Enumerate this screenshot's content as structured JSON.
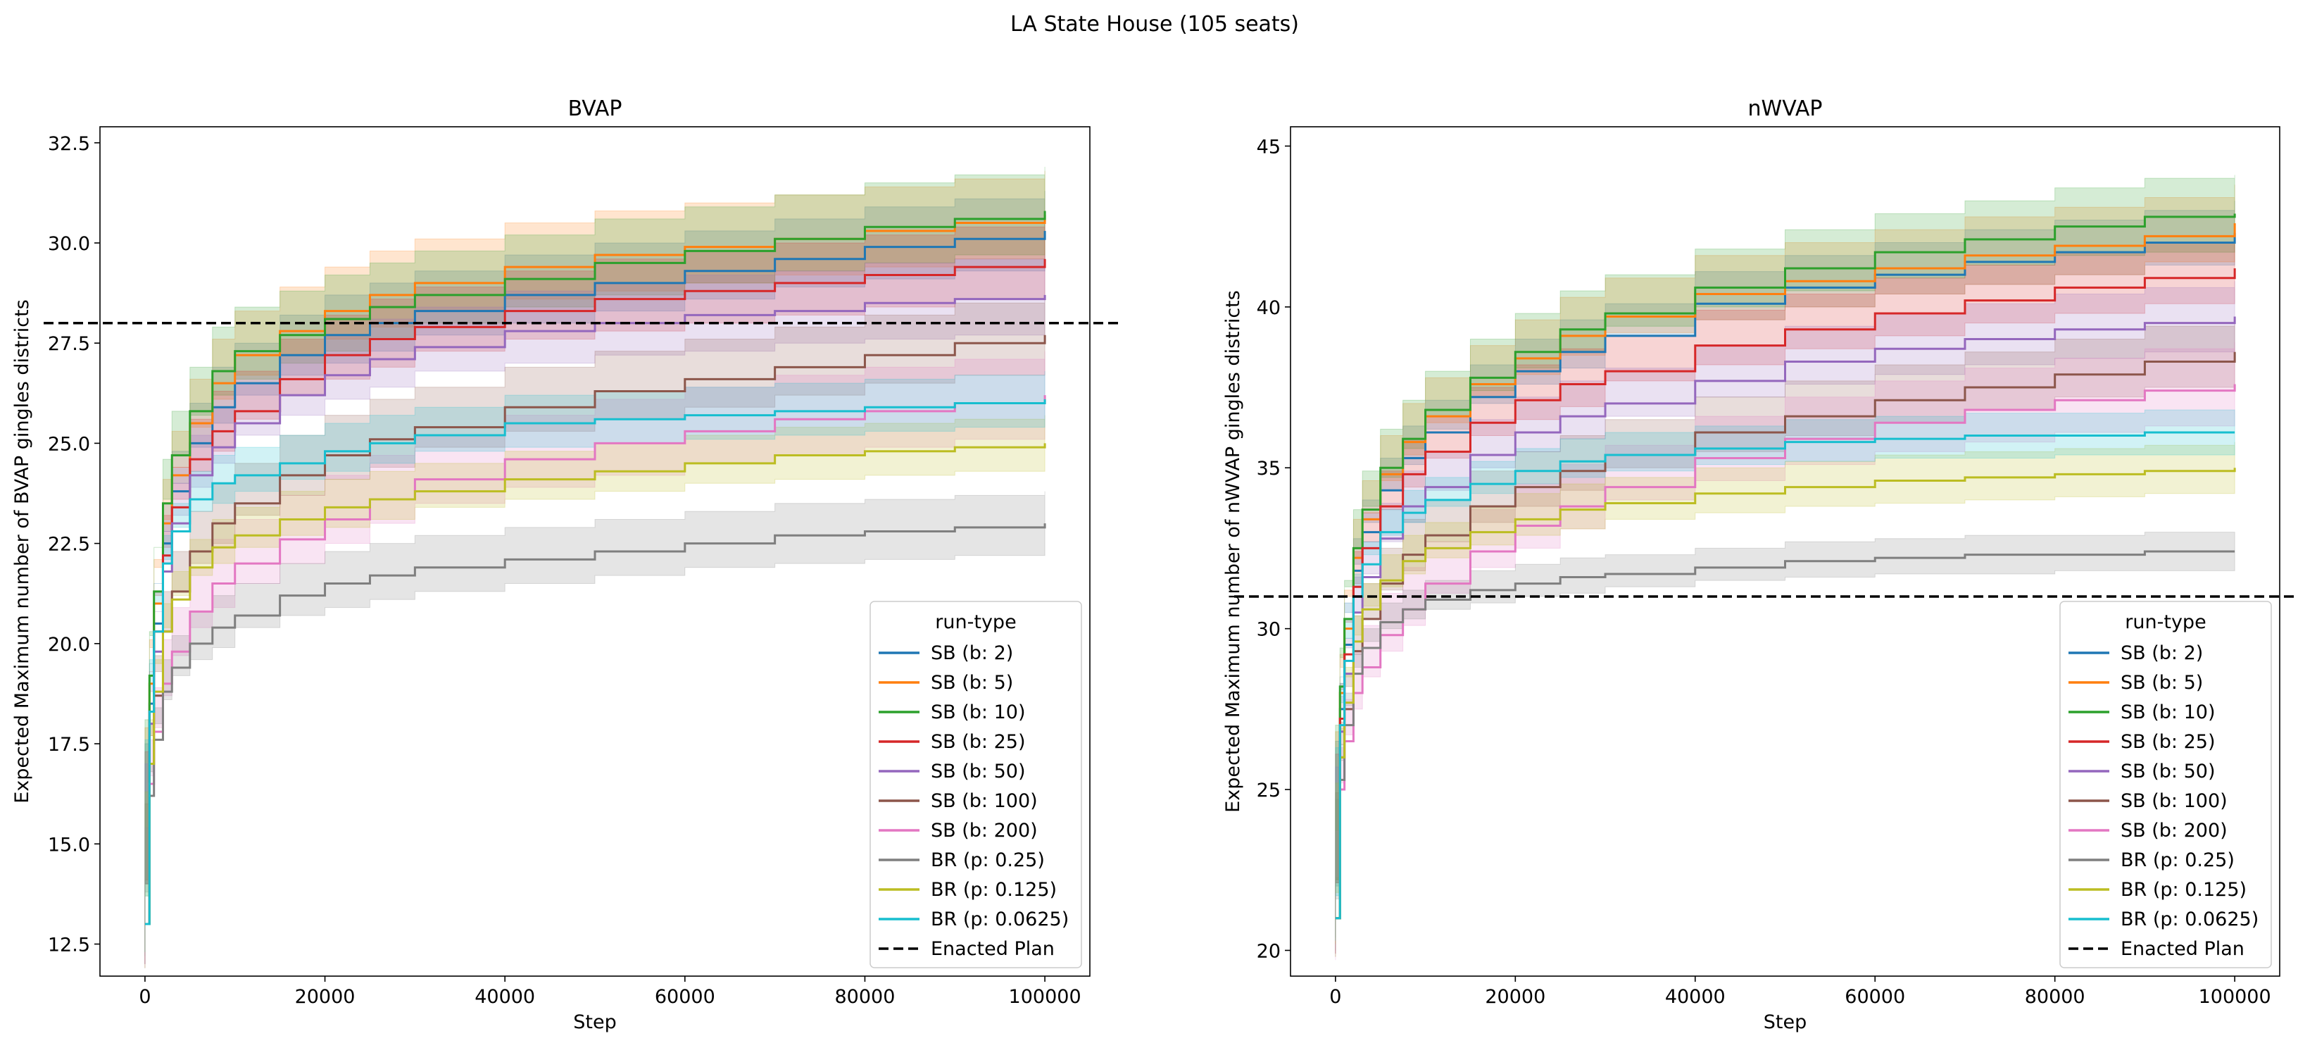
{
  "figure": {
    "suptitle": "LA State House (105 seats)"
  },
  "chart_data": [
    {
      "type": "line",
      "title": "BVAP",
      "xlabel": "Step",
      "ylabel": "Expected Maximum number of BVAP gingles districts",
      "xlim": [
        -5000,
        105000
      ],
      "ylim": [
        11.7,
        32.9
      ],
      "xticks": [
        0,
        20000,
        40000,
        60000,
        80000,
        100000
      ],
      "yticks": [
        12.5,
        15.0,
        17.5,
        20.0,
        22.5,
        25.0,
        27.5,
        30.0,
        32.5
      ],
      "grid": false,
      "legend": {
        "title": "run-type",
        "placement": "lower-right"
      },
      "enacted_plan": {
        "name": "Enacted Plan",
        "value": 28.0,
        "color": "#000000"
      },
      "x": [
        0,
        500,
        1000,
        2000,
        3000,
        5000,
        7500,
        10000,
        15000,
        20000,
        25000,
        30000,
        40000,
        50000,
        60000,
        70000,
        80000,
        90000,
        100000
      ],
      "series": [
        {
          "name": "SB (b: 2)",
          "color": "#1f77b4",
          "band": 1.0,
          "values": [
            13.0,
            18.5,
            20.5,
            22.5,
            23.8,
            25.0,
            25.9,
            26.5,
            27.2,
            27.7,
            28.0,
            28.3,
            28.7,
            29.0,
            29.3,
            29.6,
            29.9,
            30.1,
            30.3
          ]
        },
        {
          "name": "SB (b: 5)",
          "color": "#ff7f0e",
          "band": 1.1,
          "values": [
            13.0,
            19.0,
            21.0,
            23.0,
            24.2,
            25.5,
            26.5,
            27.2,
            27.8,
            28.3,
            28.7,
            29.0,
            29.4,
            29.7,
            29.9,
            30.1,
            30.3,
            30.5,
            30.7
          ]
        },
        {
          "name": "SB (b: 10)",
          "color": "#2ca02c",
          "band": 1.1,
          "values": [
            13.0,
            19.2,
            21.3,
            23.5,
            24.7,
            25.8,
            26.8,
            27.3,
            27.7,
            28.1,
            28.4,
            28.7,
            29.1,
            29.5,
            29.8,
            30.1,
            30.4,
            30.6,
            30.8
          ]
        },
        {
          "name": "SB (b: 25)",
          "color": "#d62728",
          "band": 1.0,
          "values": [
            13.0,
            18.3,
            20.3,
            22.2,
            23.4,
            24.6,
            25.3,
            25.8,
            26.6,
            27.2,
            27.6,
            27.9,
            28.3,
            28.6,
            28.8,
            29.0,
            29.2,
            29.4,
            29.6
          ]
        },
        {
          "name": "SB (b: 50)",
          "color": "#9467bd",
          "band": 1.0,
          "values": [
            13.0,
            18.0,
            19.8,
            21.8,
            23.0,
            24.2,
            24.9,
            25.5,
            26.2,
            26.7,
            27.1,
            27.4,
            27.8,
            28.0,
            28.2,
            28.3,
            28.5,
            28.6,
            28.7
          ]
        },
        {
          "name": "SB (b: 100)",
          "color": "#8c564b",
          "band": 1.0,
          "values": [
            13.0,
            17.0,
            18.7,
            20.3,
            21.3,
            22.3,
            23.0,
            23.5,
            24.2,
            24.7,
            25.1,
            25.4,
            25.9,
            26.3,
            26.6,
            26.9,
            27.2,
            27.5,
            27.7
          ]
        },
        {
          "name": "SB (b: 200)",
          "color": "#e377c2",
          "band": 1.1,
          "values": [
            13.0,
            16.5,
            17.8,
            19.0,
            19.8,
            20.8,
            21.5,
            22.0,
            22.6,
            23.1,
            23.6,
            24.1,
            24.6,
            25.0,
            25.3,
            25.6,
            25.8,
            26.0,
            26.2
          ]
        },
        {
          "name": "BR (p: 0.25)",
          "color": "#7f7f7f",
          "band": 0.8,
          "values": [
            13.0,
            16.2,
            17.6,
            18.8,
            19.4,
            20.0,
            20.4,
            20.7,
            21.2,
            21.5,
            21.7,
            21.9,
            22.1,
            22.3,
            22.5,
            22.7,
            22.8,
            22.9,
            23.0
          ]
        },
        {
          "name": "BR (p: 0.125)",
          "color": "#bcbd22",
          "band": 0.7,
          "values": [
            13.0,
            17.0,
            18.8,
            20.3,
            21.1,
            21.9,
            22.4,
            22.7,
            23.1,
            23.4,
            23.6,
            23.8,
            24.1,
            24.3,
            24.5,
            24.7,
            24.8,
            24.9,
            25.0
          ]
        },
        {
          "name": "BR (p: 0.0625)",
          "color": "#17becf",
          "band": 0.7,
          "values": [
            13.0,
            18.3,
            20.3,
            22.0,
            22.8,
            23.6,
            24.0,
            24.2,
            24.5,
            24.8,
            25.0,
            25.2,
            25.5,
            25.6,
            25.7,
            25.8,
            25.9,
            26.0,
            26.1
          ]
        }
      ]
    },
    {
      "type": "line",
      "title": "nWVAP",
      "xlabel": "Step",
      "ylabel": "Expected Maximum number of nWVAP gingles districts",
      "xlim": [
        -5000,
        105000
      ],
      "ylim": [
        19.2,
        45.6
      ],
      "xticks": [
        0,
        20000,
        40000,
        60000,
        80000,
        100000
      ],
      "yticks": [
        20,
        25,
        30,
        35,
        40,
        45
      ],
      "grid": false,
      "legend": {
        "title": "run-type",
        "placement": "lower-right"
      },
      "enacted_plan": {
        "name": "Enacted Plan",
        "value": 31.0,
        "color": "#000000"
      },
      "x": [
        0,
        500,
        1000,
        2000,
        3000,
        5000,
        7500,
        10000,
        15000,
        20000,
        25000,
        30000,
        40000,
        50000,
        60000,
        70000,
        80000,
        90000,
        100000
      ],
      "series": [
        {
          "name": "SB (b: 2)",
          "color": "#1f77b4",
          "band": 1.0,
          "values": [
            21.0,
            27.5,
            29.5,
            31.8,
            33.0,
            34.3,
            35.3,
            36.1,
            37.2,
            38.0,
            38.6,
            39.1,
            40.1,
            40.6,
            41.0,
            41.4,
            41.7,
            42.0,
            42.3
          ]
        },
        {
          "name": "SB (b: 5)",
          "color": "#ff7f0e",
          "band": 1.2,
          "values": [
            21.0,
            28.0,
            30.0,
            32.2,
            33.4,
            34.8,
            35.8,
            36.6,
            37.6,
            38.4,
            39.1,
            39.7,
            40.4,
            40.8,
            41.2,
            41.6,
            41.9,
            42.2,
            42.6
          ]
        },
        {
          "name": "SB (b: 10)",
          "color": "#2ca02c",
          "band": 1.2,
          "values": [
            21.0,
            28.2,
            30.3,
            32.5,
            33.7,
            35.0,
            35.9,
            36.8,
            37.8,
            38.6,
            39.3,
            39.8,
            40.6,
            41.2,
            41.7,
            42.1,
            42.5,
            42.8,
            42.9
          ]
        },
        {
          "name": "SB (b: 25)",
          "color": "#d62728",
          "band": 1.1,
          "values": [
            21.0,
            27.2,
            29.2,
            31.3,
            32.5,
            33.8,
            34.8,
            35.5,
            36.4,
            37.1,
            37.6,
            38.0,
            38.8,
            39.3,
            39.8,
            40.2,
            40.6,
            40.9,
            41.2
          ]
        },
        {
          "name": "SB (b: 50)",
          "color": "#9467bd",
          "band": 1.1,
          "values": [
            21.0,
            26.8,
            28.6,
            30.5,
            31.6,
            32.8,
            33.8,
            34.4,
            35.4,
            36.1,
            36.6,
            37.0,
            37.7,
            38.3,
            38.7,
            39.0,
            39.3,
            39.5,
            39.7
          ]
        },
        {
          "name": "SB (b: 100)",
          "color": "#8c564b",
          "band": 1.1,
          "values": [
            21.0,
            26.0,
            27.5,
            29.3,
            30.3,
            31.4,
            32.3,
            32.9,
            33.8,
            34.4,
            34.9,
            35.4,
            36.1,
            36.6,
            37.1,
            37.5,
            37.9,
            38.3,
            38.6
          ]
        },
        {
          "name": "SB (b: 200)",
          "color": "#e377c2",
          "band": 1.3,
          "values": [
            21.0,
            25.0,
            26.5,
            28.0,
            28.8,
            29.8,
            30.6,
            31.4,
            32.4,
            33.2,
            33.8,
            34.4,
            35.3,
            35.9,
            36.4,
            36.8,
            37.1,
            37.4,
            37.6
          ]
        },
        {
          "name": "BR (p: 0.25)",
          "color": "#7f7f7f",
          "band": 0.6,
          "values": [
            21.0,
            25.3,
            27.0,
            28.6,
            29.4,
            30.2,
            30.6,
            30.9,
            31.2,
            31.4,
            31.6,
            31.7,
            31.9,
            32.1,
            32.2,
            32.3,
            32.3,
            32.4,
            32.4
          ]
        },
        {
          "name": "BR (p: 0.125)",
          "color": "#bcbd22",
          "band": 0.8,
          "values": [
            21.0,
            26.0,
            27.7,
            29.6,
            30.6,
            31.5,
            32.1,
            32.5,
            33.0,
            33.4,
            33.7,
            33.9,
            34.2,
            34.4,
            34.6,
            34.7,
            34.8,
            34.9,
            35.0
          ]
        },
        {
          "name": "BR (p: 0.0625)",
          "color": "#17becf",
          "band": 0.7,
          "values": [
            21.0,
            27.0,
            29.0,
            31.0,
            32.0,
            33.0,
            33.6,
            34.0,
            34.5,
            34.9,
            35.2,
            35.4,
            35.6,
            35.8,
            35.9,
            36.0,
            36.0,
            36.1,
            36.1
          ]
        }
      ]
    }
  ]
}
